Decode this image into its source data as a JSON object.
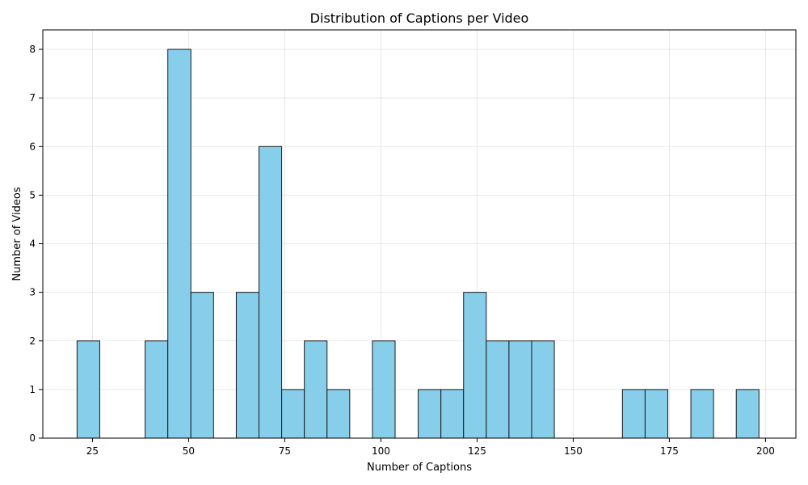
{
  "chart_data": {
    "type": "bar",
    "title": "Distribution of Captions per Video",
    "xlabel": "Number of Captions",
    "ylabel": "Number of Videos",
    "xlim": [
      12.1,
      207.9
    ],
    "ylim": [
      0,
      8.4
    ],
    "xticks": [
      25,
      50,
      75,
      100,
      125,
      150,
      175,
      200
    ],
    "yticks": [
      0,
      1,
      2,
      3,
      4,
      5,
      6,
      7,
      8
    ],
    "grid": true,
    "bar_color": "#87CEEB",
    "edge_color": "#1a1a1a",
    "bins": [
      {
        "x0": 21.0,
        "x1": 26.9,
        "count": 2
      },
      {
        "x0": 26.9,
        "x1": 32.8,
        "count": 0
      },
      {
        "x0": 32.8,
        "x1": 38.7,
        "count": 0
      },
      {
        "x0": 38.7,
        "x1": 44.6,
        "count": 2
      },
      {
        "x0": 44.6,
        "x1": 50.6,
        "count": 8
      },
      {
        "x0": 50.6,
        "x1": 56.5,
        "count": 3
      },
      {
        "x0": 56.5,
        "x1": 62.4,
        "count": 0
      },
      {
        "x0": 62.4,
        "x1": 68.3,
        "count": 3
      },
      {
        "x0": 68.3,
        "x1": 74.2,
        "count": 6
      },
      {
        "x0": 74.2,
        "x1": 80.1,
        "count": 1
      },
      {
        "x0": 80.1,
        "x1": 86.0,
        "count": 2
      },
      {
        "x0": 86.0,
        "x1": 91.9,
        "count": 1
      },
      {
        "x0": 91.9,
        "x1": 97.8,
        "count": 0
      },
      {
        "x0": 97.8,
        "x1": 103.7,
        "count": 2
      },
      {
        "x0": 103.7,
        "x1": 109.7,
        "count": 0
      },
      {
        "x0": 109.7,
        "x1": 115.6,
        "count": 1
      },
      {
        "x0": 115.6,
        "x1": 121.5,
        "count": 1
      },
      {
        "x0": 121.5,
        "x1": 127.4,
        "count": 3
      },
      {
        "x0": 127.4,
        "x1": 133.3,
        "count": 2
      },
      {
        "x0": 133.3,
        "x1": 139.2,
        "count": 2
      },
      {
        "x0": 139.2,
        "x1": 145.1,
        "count": 2
      },
      {
        "x0": 145.1,
        "x1": 151.0,
        "count": 0
      },
      {
        "x0": 151.0,
        "x1": 156.9,
        "count": 0
      },
      {
        "x0": 156.9,
        "x1": 162.8,
        "count": 0
      },
      {
        "x0": 162.8,
        "x1": 168.7,
        "count": 1
      },
      {
        "x0": 168.7,
        "x1": 174.6,
        "count": 1
      },
      {
        "x0": 174.6,
        "x1": 180.6,
        "count": 0
      },
      {
        "x0": 180.6,
        "x1": 186.5,
        "count": 1
      },
      {
        "x0": 186.5,
        "x1": 192.4,
        "count": 0
      },
      {
        "x0": 192.4,
        "x1": 198.3,
        "count": 1
      }
    ]
  }
}
